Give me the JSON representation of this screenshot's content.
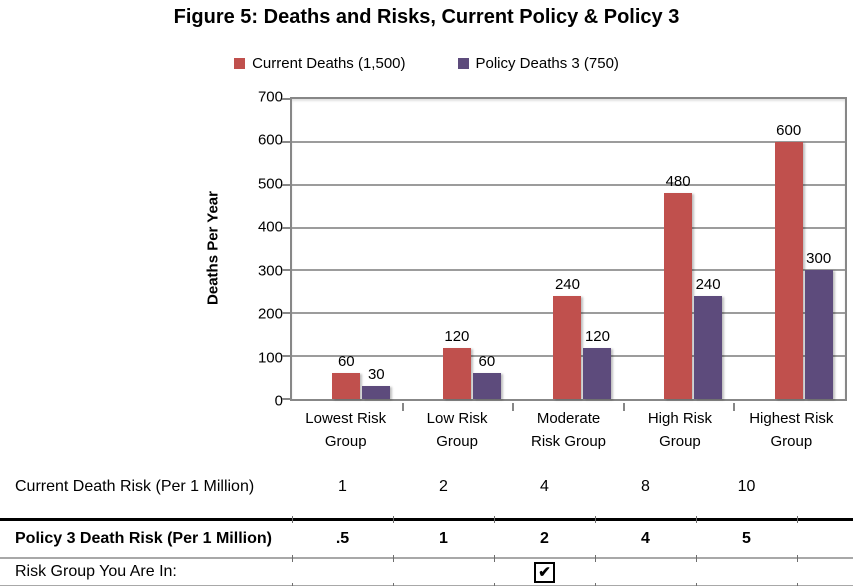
{
  "title": "Figure 5: Deaths and Risks, Current Policy & Policy 3",
  "chart_data": {
    "type": "bar",
    "title": "Figure 5: Deaths and Risks, Current Policy & Policy 3",
    "categories": [
      "Lowest Risk\nGroup",
      "Low Risk\nGroup",
      "Moderate\nRisk Group",
      "High Risk\nGroup",
      "Highest Risk\nGroup"
    ],
    "series": [
      {
        "name": "Current Deaths (1,500)",
        "color": "#C0504D",
        "values": [
          60,
          120,
          240,
          480,
          600
        ]
      },
      {
        "name": "Policy Deaths 3 (750)",
        "color": "#5D4B7C",
        "values": [
          30,
          60,
          120,
          240,
          300
        ]
      }
    ],
    "xlabel": "",
    "ylabel": "Deaths Per Year",
    "ylim": [
      0,
      700
    ],
    "ytick_step": 100,
    "grid": true,
    "grid_color": "#9c9c9c",
    "legend_position": "top",
    "data_labels": true
  },
  "risk_table": {
    "rows": [
      {
        "label": "Current Death Risk (Per 1 Million)",
        "values": [
          "1",
          "2",
          "4",
          "8",
          "10"
        ],
        "bold": false
      },
      {
        "label": "Policy 3 Death Risk (Per 1 Million)",
        "values": [
          ".5",
          "1",
          "2",
          "4",
          "5"
        ],
        "bold": true
      },
      {
        "label": "Risk Group You Are In:",
        "checkbox_column": 3,
        "checkbox_checked": true
      }
    ]
  },
  "icons": {
    "checkbox_check": "✔"
  }
}
